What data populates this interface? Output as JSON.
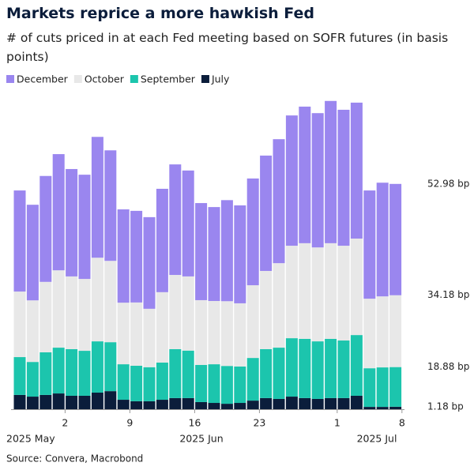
{
  "chart_data": {
    "type": "stacked-bar",
    "title": "Markets reprice a more hawkish Fed",
    "subtitle": "# of cuts priced in at each Fed meeting based on SOFR futures (in basis points)",
    "source": "Source: Convera, Macrobond",
    "categories": [
      null,
      null,
      null,
      null,
      "2",
      null,
      null,
      null,
      null,
      "9",
      null,
      null,
      null,
      null,
      "16",
      null,
      null,
      null,
      null,
      "23",
      null,
      null,
      null,
      null,
      null,
      "1",
      null,
      null,
      null,
      "8"
    ],
    "month_labels": [
      "2025 May",
      "2025 Jun",
      "2025 Jul"
    ],
    "series": [
      {
        "name": "December",
        "color": "#9a86ef",
        "label_color": "#8f7be6",
        "values": [
          48.1,
          45.5,
          50.4,
          55.3,
          51.1,
          49.6,
          57.5,
          52.6,
          44.4,
          43.6,
          43.6,
          49.2,
          52.6,
          50.4,
          46.2,
          44.7,
          48.1,
          46.6,
          50.8,
          54.9,
          59.0,
          62.0,
          65.0,
          63.9,
          67.7,
          64.7,
          64.7,
          51.5,
          54.1,
          52.98
        ],
        "value_labels": [
          null,
          null,
          null,
          null,
          null,
          null,
          null,
          null,
          null,
          null,
          null,
          null,
          null,
          null,
          null,
          null,
          null,
          null,
          null,
          null,
          null,
          null,
          null,
          null,
          null,
          null,
          null,
          null,
          null,
          "52.98 bp"
        ]
      },
      {
        "name": "October",
        "color": "#e8e8e8",
        "label_color": "#a9a9a9",
        "values": [
          31.2,
          29.3,
          33.5,
          36.8,
          34.6,
          34.2,
          39.8,
          38.7,
          29.3,
          30.1,
          27.8,
          33.5,
          35.3,
          35.3,
          30.8,
          30.1,
          30.8,
          30.1,
          34.6,
          37.2,
          40.2,
          44.0,
          45.5,
          44.7,
          45.5,
          45.1,
          45.9,
          33.1,
          33.8,
          34.18
        ],
        "value_labels": [
          null,
          null,
          null,
          null,
          null,
          null,
          null,
          null,
          null,
          null,
          null,
          null,
          null,
          null,
          null,
          null,
          null,
          null,
          null,
          null,
          null,
          null,
          null,
          null,
          null,
          null,
          null,
          null,
          null,
          "34.18 bp"
        ]
      },
      {
        "name": "September",
        "color": "#1cc5ad",
        "label_color": "#15b8a0",
        "values": [
          18.0,
          16.5,
          20.3,
          21.8,
          22.2,
          21.4,
          24.4,
          23.3,
          16.9,
          16.9,
          16.2,
          17.7,
          23.3,
          22.6,
          17.7,
          18.4,
          18.0,
          17.3,
          20.3,
          23.3,
          24.4,
          27.8,
          28.2,
          27.4,
          28.2,
          27.4,
          28.9,
          18.4,
          18.8,
          18.88
        ],
        "value_labels": [
          null,
          null,
          null,
          null,
          null,
          null,
          null,
          null,
          null,
          null,
          null,
          null,
          null,
          null,
          null,
          null,
          null,
          null,
          null,
          null,
          null,
          null,
          null,
          null,
          null,
          null,
          null,
          null,
          null,
          "18.88 bp"
        ]
      },
      {
        "name": "July",
        "color": "#0b1d3b",
        "label_color": "#0b1d3b",
        "values": [
          6.8,
          6.0,
          6.8,
          7.5,
          6.4,
          6.4,
          7.9,
          8.6,
          4.5,
          3.8,
          3.8,
          4.5,
          5.3,
          5.3,
          3.4,
          3.0,
          2.6,
          3.0,
          4.1,
          5.3,
          4.9,
          6.0,
          5.3,
          4.9,
          5.3,
          5.3,
          6.4,
          1.1,
          1.1,
          1.18
        ],
        "value_labels": [
          null,
          null,
          null,
          null,
          null,
          null,
          null,
          null,
          null,
          null,
          null,
          null,
          null,
          null,
          null,
          null,
          null,
          null,
          null,
          null,
          null,
          null,
          null,
          null,
          null,
          null,
          null,
          null,
          null,
          "1.18 bp"
        ]
      }
    ]
  }
}
